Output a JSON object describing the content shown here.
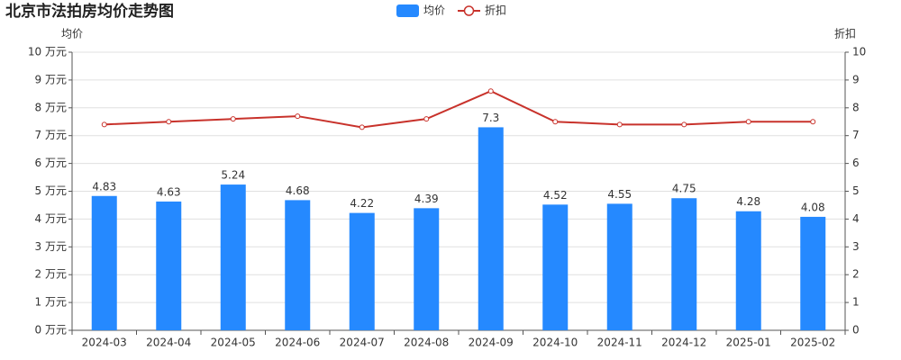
{
  "chart_data": {
    "type": "bar",
    "title": "北京市法拍房均价走势图",
    "categories": [
      "2024-03",
      "2024-04",
      "2024-05",
      "2024-06",
      "2024-07",
      "2024-08",
      "2024-09",
      "2024-10",
      "2024-11",
      "2024-12",
      "2025-01",
      "2025-02"
    ],
    "series": [
      {
        "name": "均价",
        "type": "bar",
        "color": "#2589ff",
        "values": [
          4.83,
          4.63,
          5.24,
          4.68,
          4.22,
          4.39,
          7.3,
          4.52,
          4.55,
          4.75,
          4.28,
          4.08
        ]
      },
      {
        "name": "折扣",
        "type": "line",
        "axis": "y2",
        "color": "#c8322b",
        "values": [
          7.4,
          7.5,
          7.6,
          7.7,
          7.3,
          7.6,
          8.6,
          7.5,
          7.4,
          7.4,
          7.5,
          7.5
        ]
      }
    ],
    "ylabel": "均价",
    "y2label": "折扣",
    "ylim": [
      0,
      10
    ],
    "yticks": [
      {
        "value": 0,
        "label": "0 万元"
      },
      {
        "value": 1,
        "label": "1 万元"
      },
      {
        "value": 2,
        "label": "2 万元"
      },
      {
        "value": 3,
        "label": "3 万元"
      },
      {
        "value": 4,
        "label": "4 万元"
      },
      {
        "value": 5,
        "label": "5 万元"
      },
      {
        "value": 6,
        "label": "6 万元"
      },
      {
        "value": 7,
        "label": "7 万元"
      },
      {
        "value": 8,
        "label": "8 万元"
      },
      {
        "value": 9,
        "label": "9 万元"
      },
      {
        "value": 10,
        "label": "10 万元"
      }
    ],
    "y2lim": [
      0,
      10
    ],
    "y2ticks": [
      0,
      1,
      2,
      3,
      4,
      5,
      6,
      7,
      8,
      9,
      10
    ],
    "grid": true,
    "legend": "top"
  }
}
